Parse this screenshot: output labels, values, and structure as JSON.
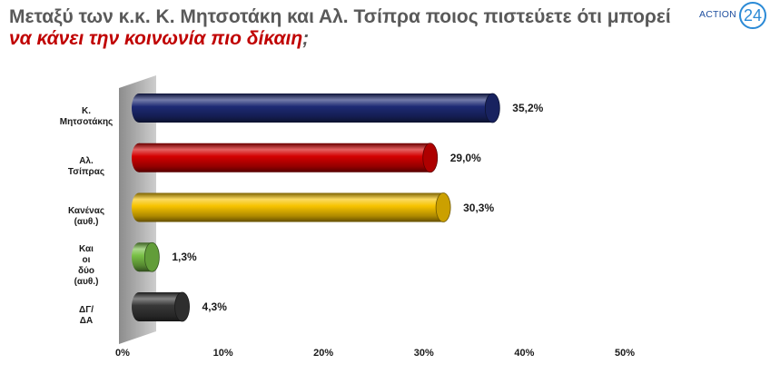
{
  "logo": {
    "text": "ACTION",
    "number": "24",
    "colors": {
      "text": "#1f4f9f",
      "number": "#2b8ad6"
    }
  },
  "chart_data": {
    "type": "bar",
    "orientation": "horizontal",
    "title": "Μεταξύ των κ.κ. Κ. Μητσοτάκη και Αλ. Τσίπρα ποιος πιστεύετε ότι μπορεί να κάνει την κοινωνία πιο δίκαιη;",
    "title_highlight": "να κάνει την κοινωνία πιο δίκαιη",
    "categories": [
      "Κ.\nΜητσοτάκης",
      "Αλ. Τσίπρας",
      "Κανένας\n(αυθ.)",
      "Και οι δύο\n(αυθ.)",
      "ΔΓ/ΔΑ"
    ],
    "values": [
      35.2,
      29.0,
      30.3,
      1.3,
      4.3
    ],
    "value_labels": [
      "35,2%",
      "29,0%",
      "30,3%",
      "1,3%",
      "4,3%"
    ],
    "xlim": [
      0,
      50
    ],
    "xticks": [
      0,
      10,
      20,
      30,
      40,
      50
    ],
    "xtick_labels": [
      "0%",
      "10%",
      "20%",
      "30%",
      "40%",
      "50%"
    ],
    "grid": false,
    "legend": false,
    "bar_colors": [
      "#1d2a74",
      "#d40000",
      "#f7c300",
      "#78bf45",
      "#383838"
    ],
    "colors": {
      "title": "#595959",
      "title_highlight": "#c00000",
      "labels": "#1a1a1a",
      "wall": "#b4b4b4"
    }
  }
}
